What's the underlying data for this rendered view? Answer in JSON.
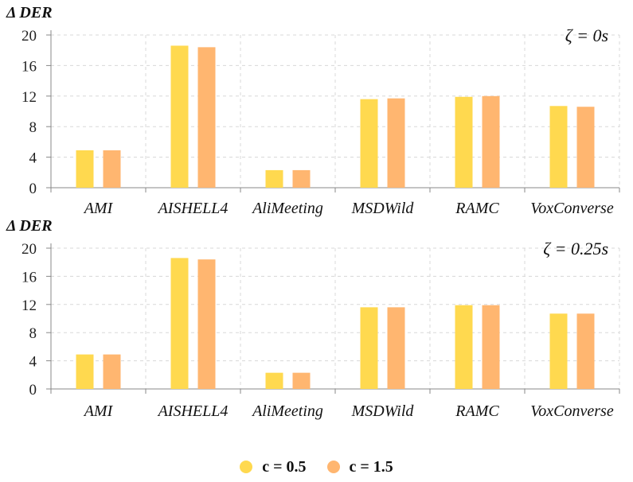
{
  "chart_data": [
    {
      "type": "bar",
      "title": "ζ = 0s",
      "ylabel": "Δ DER",
      "xlabel": "",
      "categories": [
        "AMI",
        "AISHELL4",
        "AliMeeting",
        "MSDWild",
        "RAMC",
        "VoxConverse"
      ],
      "ylim": [
        0,
        20
      ],
      "yticks": [
        0,
        4,
        8,
        12,
        16,
        20
      ],
      "grid": true,
      "series": [
        {
          "name": "c = 0.5",
          "values": [
            4.9,
            18.6,
            2.3,
            11.6,
            11.9,
            10.7
          ]
        },
        {
          "name": "c = 1.5",
          "values": [
            4.9,
            18.4,
            2.3,
            11.7,
            12.0,
            10.6
          ]
        }
      ]
    },
    {
      "type": "bar",
      "title": "ζ = 0.25s",
      "ylabel": "Δ DER",
      "xlabel": "",
      "categories": [
        "AMI",
        "AISHELL4",
        "AliMeeting",
        "MSDWild",
        "RAMC",
        "VoxConverse"
      ],
      "ylim": [
        0,
        20
      ],
      "yticks": [
        0,
        4,
        8,
        12,
        16,
        20
      ],
      "grid": true,
      "series": [
        {
          "name": "c = 0.5",
          "values": [
            4.9,
            18.6,
            2.3,
            11.6,
            11.9,
            10.7
          ]
        },
        {
          "name": "c = 1.5",
          "values": [
            4.9,
            18.4,
            2.3,
            11.6,
            11.9,
            10.7
          ]
        }
      ]
    }
  ],
  "legend": {
    "items": [
      {
        "label": "c = 0.5",
        "color": "#FFD94F"
      },
      {
        "label": "c = 1.5",
        "color": "#FFB670"
      }
    ]
  }
}
